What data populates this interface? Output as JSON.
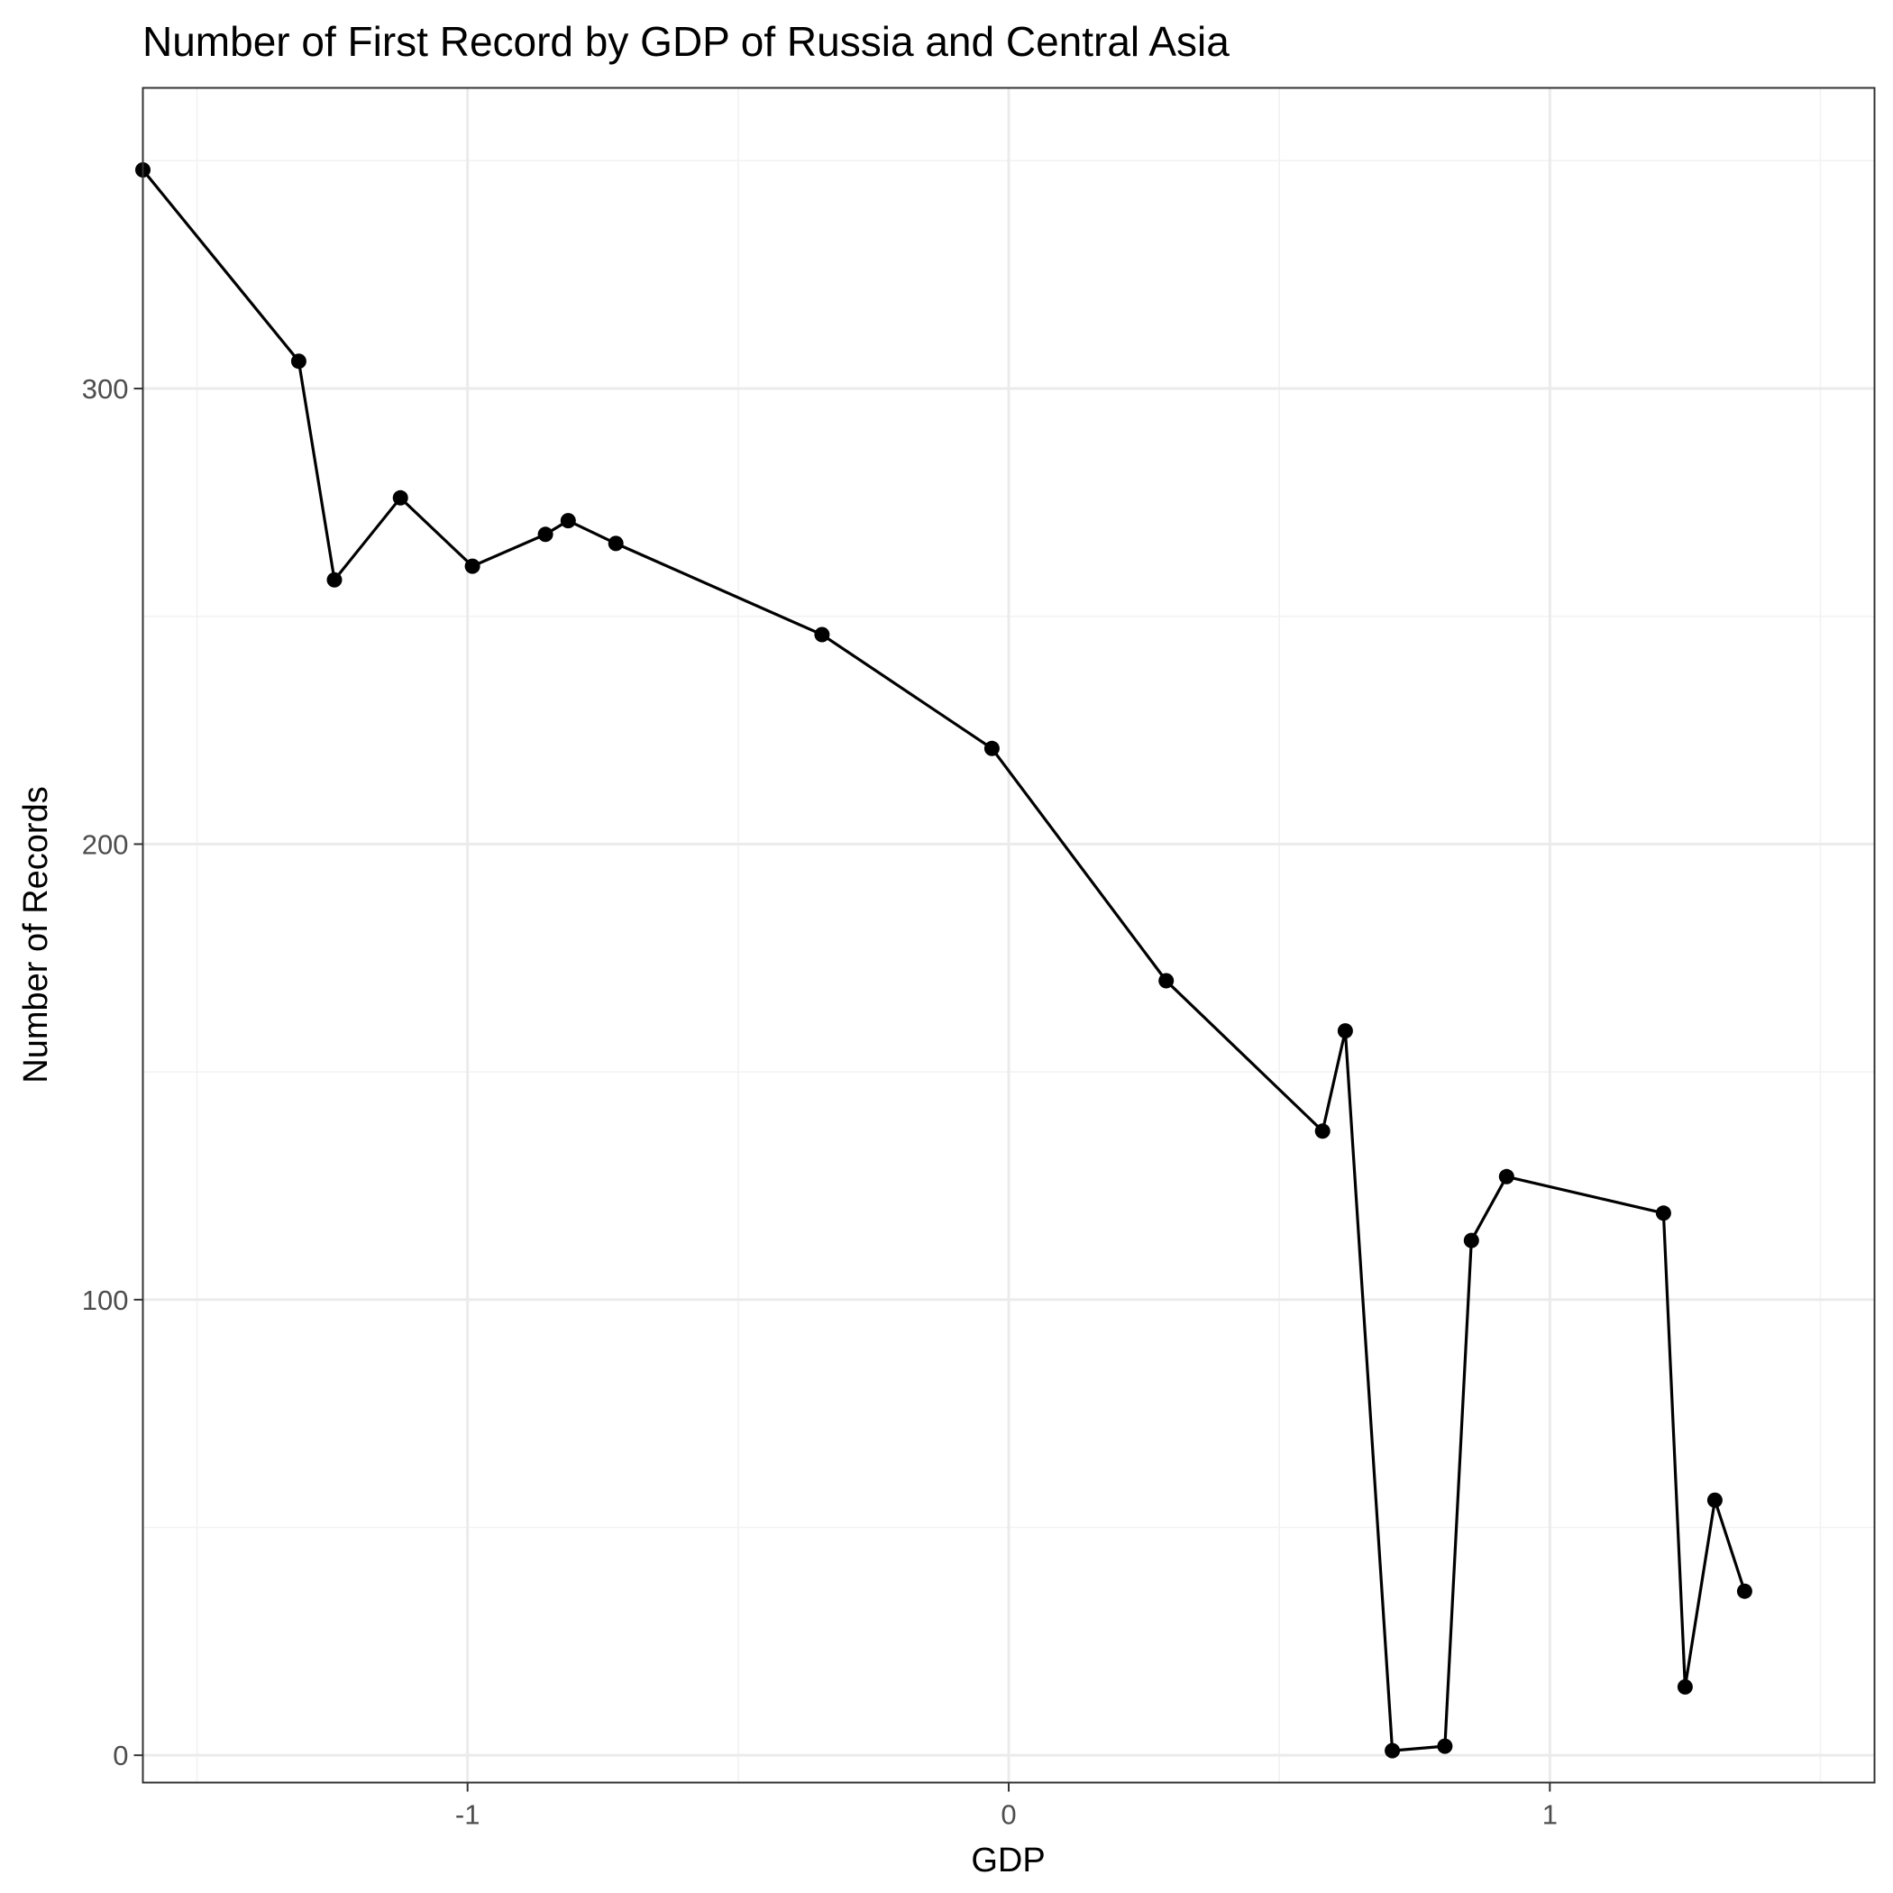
{
  "chart_data": {
    "type": "line",
    "title": "Number of First Record by GDP of Russia and Central Asia",
    "xlabel": "GDP",
    "ylabel": "Number of Records",
    "xlim": [
      -1.6,
      1.6
    ],
    "ylim": [
      -6,
      366
    ],
    "x_ticks": [
      -1,
      0,
      1
    ],
    "x_tick_labels": [
      "-1",
      "0",
      "1"
    ],
    "y_ticks": [
      0,
      100,
      200,
      300
    ],
    "y_tick_labels": [
      "0",
      "100",
      "200",
      "300"
    ],
    "grid": true,
    "points": true,
    "line_color": "#000000",
    "x": [
      -1.6,
      -1.312,
      -1.246,
      -1.124,
      -0.991,
      -0.856,
      -0.814,
      -0.726,
      -0.345,
      -0.031,
      0.291,
      0.58,
      0.622,
      0.709,
      0.806,
      0.855,
      0.92,
      1.21,
      1.25,
      1.305,
      1.36
    ],
    "y": [
      348,
      306,
      258,
      276,
      261,
      268,
      271,
      266,
      246,
      221,
      170,
      137,
      159,
      1,
      2,
      113,
      127,
      119,
      15,
      56,
      36
    ]
  }
}
